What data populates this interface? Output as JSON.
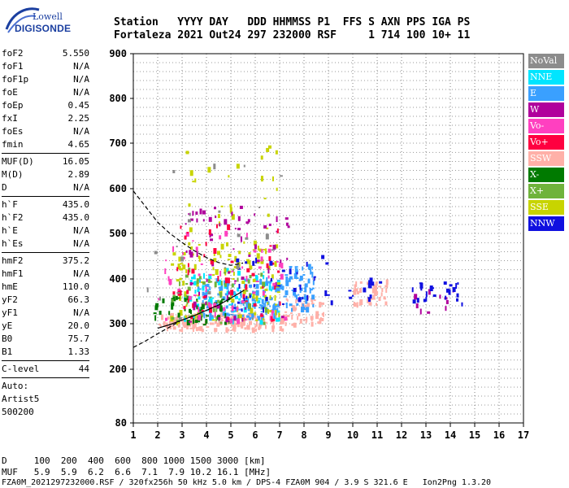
{
  "logo": {
    "line1": "Lowell",
    "line2": "DIGISONDE"
  },
  "header": {
    "line1": "Station   YYYY DAY   DDD HHMMSS P1  FFS S AXN PPS IGA PS",
    "line2": "Fortaleza 2021 Out24 297 232000 RSF     1 714 100 10+ 11"
  },
  "params": [
    {
      "group": [
        {
          "name": "foF2",
          "value": "5.550"
        },
        {
          "name": "foF1",
          "value": "N/A"
        },
        {
          "name": "foF1p",
          "value": "N/A"
        },
        {
          "name": "foE",
          "value": "N/A"
        },
        {
          "name": "foEp",
          "value": "0.45"
        },
        {
          "name": "fxI",
          "value": "2.25"
        },
        {
          "name": "foEs",
          "value": "N/A"
        },
        {
          "name": "fmin",
          "value": "4.65"
        }
      ]
    },
    {
      "group": [
        {
          "name": "MUF(D)",
          "value": "16.05"
        },
        {
          "name": "M(D)",
          "value": "2.89"
        },
        {
          "name": "D",
          "value": "N/A"
        }
      ]
    },
    {
      "group": [
        {
          "name": "h`F",
          "value": "435.0"
        },
        {
          "name": "h`F2",
          "value": "435.0"
        },
        {
          "name": "h`E",
          "value": "N/A"
        },
        {
          "name": "h`Es",
          "value": "N/A"
        }
      ]
    },
    {
      "group": [
        {
          "name": "hmF2",
          "value": "375.2"
        },
        {
          "name": "hmF1",
          "value": "N/A"
        },
        {
          "name": "hmE",
          "value": "110.0"
        },
        {
          "name": "yF2",
          "value": "66.3"
        },
        {
          "name": "yF1",
          "value": "N/A"
        },
        {
          "name": "yE",
          "value": "20.0"
        },
        {
          "name": "B0",
          "value": "75.7"
        },
        {
          "name": "B1",
          "value": "1.33"
        }
      ]
    },
    {
      "group": [
        {
          "name": "C-level",
          "value": "44"
        }
      ]
    }
  ],
  "autoscale": {
    "line1": "Auto:",
    "line2": "Artist5",
    "line3": "500200"
  },
  "legend": [
    {
      "label": "NoVal",
      "color": "#8c8c8c"
    },
    {
      "label": "NNE",
      "color": "#00e5ff"
    },
    {
      "label": "E",
      "color": "#3aa0ff"
    },
    {
      "label": "W",
      "color": "#b0009c"
    },
    {
      "label": "Vo-",
      "color": "#ff40c0"
    },
    {
      "label": "Vo+",
      "color": "#ff0040"
    },
    {
      "label": "SSW",
      "color": "#ffb0a8"
    },
    {
      "label": "X-",
      "color": "#007a00"
    },
    {
      "label": "X+",
      "color": "#6fb33b"
    },
    {
      "label": "SSE",
      "color": "#c8d400"
    },
    {
      "label": "NNW",
      "color": "#1010e0"
    }
  ],
  "bottom": {
    "dist_line": "D     100  200  400  600  800 1000 1500 3000 [km]",
    "muf_line": "MUF   5.9  5.9  6.2  6.6  7.1  7.9 10.2 16.1 [MHz]",
    "footer": "FZA0M_2021297232000.RSF / 320fx256h 50 kHz 5.0 km / DPS-4 FZA0M 904 / 3.9 S 321.6 E   Ion2Png 1.3.20"
  },
  "chart_data": {
    "type": "scatter",
    "title": "",
    "xlabel": "",
    "ylabel": "",
    "xlim": [
      1,
      17
    ],
    "ylim": [
      80,
      900
    ],
    "x_ticks": [
      "1",
      "2",
      "3",
      "4",
      "5",
      "6",
      "7",
      "8",
      "9",
      "10",
      "11",
      "12",
      "13",
      "14",
      "15",
      "16",
      "17"
    ],
    "y_ticks": [
      "80",
      "200",
      "300",
      "400",
      "500",
      "600",
      "700",
      "800",
      "900"
    ],
    "y_tick_values": [
      80,
      200,
      300,
      400,
      500,
      600,
      700,
      800,
      900
    ],
    "grid": true,
    "clusters": [
      {
        "label": "SSW",
        "x": [
          2.0,
          7.2
        ],
        "y": [
          285,
          320
        ],
        "n": 160
      },
      {
        "label": "SSW",
        "x": [
          7.2,
          8.8
        ],
        "y": [
          295,
          360
        ],
        "n": 50
      },
      {
        "label": "SSW",
        "x": [
          10.0,
          11.4
        ],
        "y": [
          340,
          395
        ],
        "n": 40
      },
      {
        "label": "E",
        "x": [
          3.5,
          7.0
        ],
        "y": [
          310,
          400
        ],
        "n": 140
      },
      {
        "label": "E",
        "x": [
          7.0,
          8.4
        ],
        "y": [
          330,
          430
        ],
        "n": 60
      },
      {
        "label": "NNE",
        "x": [
          3.0,
          7.0
        ],
        "y": [
          300,
          420
        ],
        "n": 70
      },
      {
        "label": "SSE",
        "x": [
          2.5,
          7.0
        ],
        "y": [
          300,
          480
        ],
        "n": 110
      },
      {
        "label": "SSE",
        "x": [
          3.0,
          7.0
        ],
        "y": [
          480,
          700
        ],
        "n": 25
      },
      {
        "label": "X-",
        "x": [
          1.8,
          5.0
        ],
        "y": [
          295,
          360
        ],
        "n": 50
      },
      {
        "label": "X+",
        "x": [
          2.5,
          6.5
        ],
        "y": [
          300,
          420
        ],
        "n": 50
      },
      {
        "label": "W",
        "x": [
          3.0,
          7.5
        ],
        "y": [
          300,
          560
        ],
        "n": 70
      },
      {
        "label": "W",
        "x": [
          12.5,
          14.2
        ],
        "y": [
          320,
          380
        ],
        "n": 10
      },
      {
        "label": "Vo-",
        "x": [
          2.0,
          7.2
        ],
        "y": [
          300,
          500
        ],
        "n": 60
      },
      {
        "label": "Vo+",
        "x": [
          2.5,
          7.0
        ],
        "y": [
          300,
          520
        ],
        "n": 50
      },
      {
        "label": "NNW",
        "x": [
          5.0,
          9.2
        ],
        "y": [
          330,
          460
        ],
        "n": 35
      },
      {
        "label": "NNW",
        "x": [
          9.8,
          11.2
        ],
        "y": [
          350,
          400
        ],
        "n": 15
      },
      {
        "label": "NNW",
        "x": [
          12.4,
          14.6
        ],
        "y": [
          340,
          395
        ],
        "n": 25
      },
      {
        "label": "NoVal",
        "x": [
          1.5,
          7.0
        ],
        "y": [
          300,
          650
        ],
        "n": 25
      }
    ],
    "profile_curves": [
      {
        "name": "dashed",
        "x": [
          1.0,
          1.5,
          2.0,
          2.5,
          3.0,
          3.5,
          4.0,
          4.5,
          5.0,
          5.5
        ],
        "y": [
          595,
          560,
          525,
          500,
          480,
          462,
          447,
          436,
          430,
          435
        ]
      },
      {
        "name": "dashed-lower",
        "x": [
          1.0,
          1.5,
          2.0,
          2.5,
          2.9
        ],
        "y": [
          248,
          262,
          278,
          293,
          305
        ]
      },
      {
        "name": "solid",
        "x": [
          2.0,
          2.5,
          3.0,
          3.5,
          4.0,
          4.5,
          5.0,
          5.55
        ],
        "y": [
          290,
          298,
          308,
          318,
          330,
          342,
          357,
          375
        ]
      }
    ]
  }
}
